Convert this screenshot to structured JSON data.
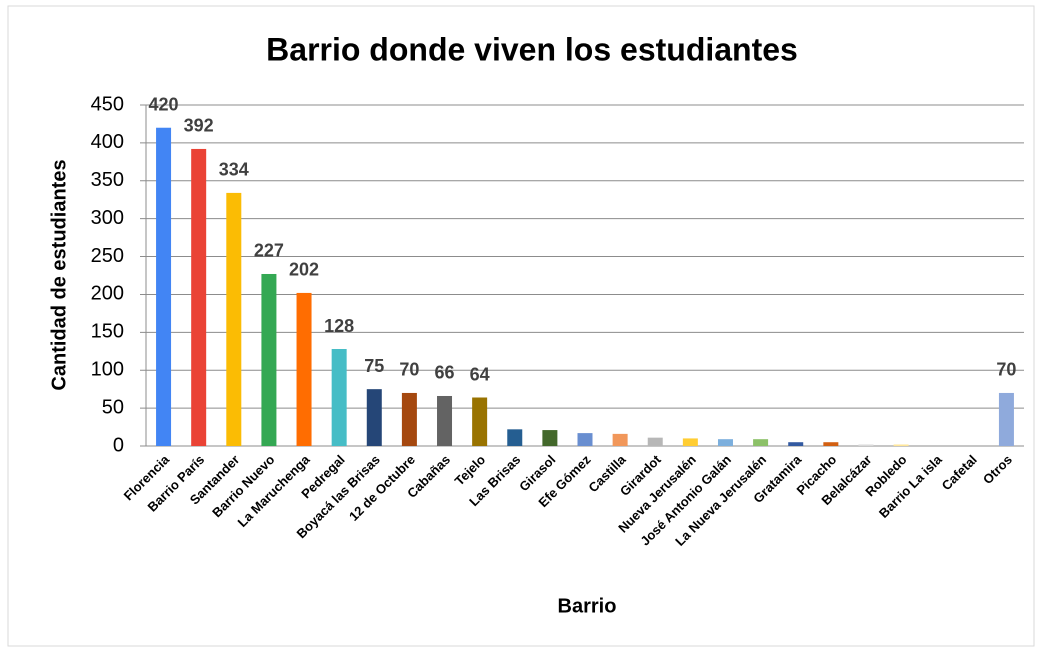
{
  "chart_data": {
    "type": "bar",
    "title": "Barrio donde viven los estudiantes",
    "x_label": "Barrio",
    "y_label": "Cantidad de estudiantes",
    "categories": [
      "Florencia",
      "Barrio París",
      "Santander",
      "Barrio Nuevo",
      "La Maruchenga",
      "Pedregal",
      "Boyacá las Brisas",
      "12 de Octubre",
      "Cabañas",
      "Tejelo",
      "Las Brisas",
      "Girasol",
      "Efe Gómez",
      "Castilla",
      "Girardot",
      "Nueva Jerusalén",
      "José Antonio Galán",
      "La Nueva Jerusalén",
      "Gratamira",
      "Picacho",
      "Belalcázar",
      "Robledo",
      "Barrio La isla",
      "Cafetal",
      "Otros"
    ],
    "values": [
      420,
      392,
      334,
      227,
      202,
      128,
      75,
      70,
      66,
      64,
      22,
      21,
      17,
      16,
      11,
      10,
      9,
      9,
      5,
      5,
      2,
      2,
      0,
      0,
      70
    ],
    "value_labels": [
      "420",
      "392",
      "334",
      "227",
      "202",
      "128",
      "75",
      "70",
      "66",
      "64",
      null,
      null,
      null,
      null,
      null,
      null,
      null,
      null,
      null,
      null,
      null,
      null,
      null,
      null,
      "70"
    ],
    "colors": [
      "#4285f4",
      "#ea4335",
      "#fbbc04",
      "#34a853",
      "#ff6d01",
      "#46bdc6",
      "#254677",
      "#a5480f",
      "#636363",
      "#997300",
      "#255e91",
      "#43682b",
      "#698ed0",
      "#f1975a",
      "#b7b7b7",
      "#ffcd33",
      "#7cafdd",
      "#8cc168",
      "#335aa1",
      "#d26012",
      "#d9d9d9",
      "#ffe699",
      "#c5d9f1",
      "#e2efda",
      "#8faadc"
    ],
    "ylim": [
      0,
      450
    ],
    "yticks": [
      0,
      50,
      100,
      150,
      200,
      250,
      300,
      350,
      400,
      450
    ],
    "grid": true
  }
}
